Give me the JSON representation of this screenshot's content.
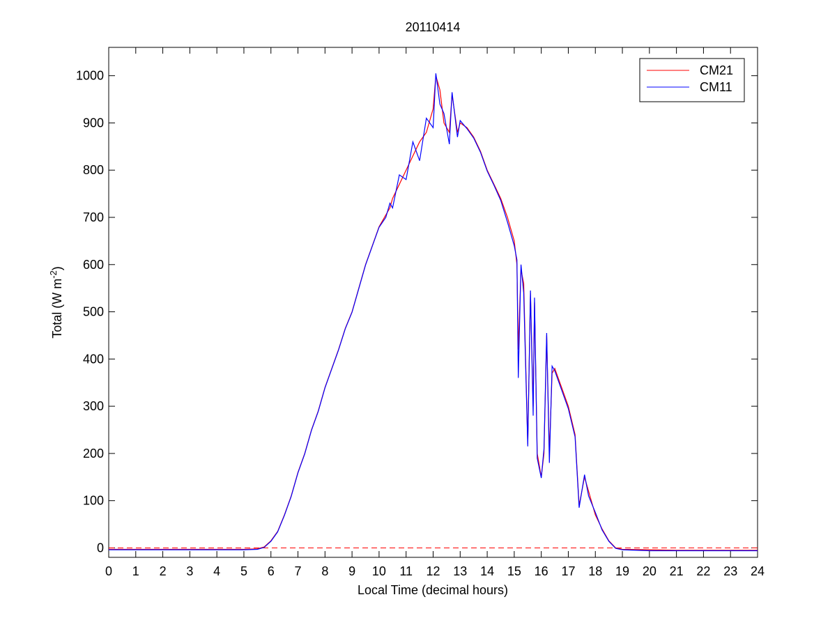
{
  "chart_data": {
    "type": "line",
    "title": "20110414",
    "xlabel": "Local Time (decimal hours)",
    "ylabel": [
      "Total (W m",
      "-2",
      ")"
    ],
    "x": [
      0,
      1,
      2,
      3,
      4,
      5,
      5.5,
      5.75,
      6,
      6.25,
      6.5,
      6.75,
      7,
      7.25,
      7.5,
      7.75,
      8,
      8.25,
      8.5,
      8.75,
      9,
      9.25,
      9.5,
      9.75,
      10,
      10.25,
      10.4,
      10.5,
      10.75,
      11,
      11.25,
      11.5,
      11.75,
      12,
      12.1,
      12.25,
      12.4,
      12.6,
      12.7,
      12.9,
      13,
      13.25,
      13.5,
      13.75,
      14,
      14.25,
      14.5,
      14.75,
      15,
      15.1,
      15.15,
      15.25,
      15.35,
      15.5,
      15.6,
      15.7,
      15.75,
      15.85,
      16,
      16.1,
      16.2,
      16.3,
      16.4,
      16.5,
      16.75,
      17,
      17.25,
      17.4,
      17.6,
      17.75,
      18,
      18.25,
      18.5,
      18.75,
      19,
      20,
      21,
      22,
      23,
      24
    ],
    "series": [
      {
        "name": "CM21",
        "color": "#ff0000",
        "values": [
          -3,
          -3,
          -3,
          -3,
          -3,
          -3,
          -2,
          2,
          15,
          35,
          70,
          110,
          160,
          200,
          250,
          290,
          340,
          380,
          420,
          465,
          500,
          550,
          600,
          640,
          680,
          705,
          720,
          740,
          770,
          800,
          830,
          860,
          880,
          930,
          1000,
          970,
          900,
          880,
          960,
          880,
          900,
          890,
          870,
          840,
          800,
          770,
          740,
          700,
          650,
          600,
          420,
          590,
          560,
          220,
          540,
          300,
          520,
          200,
          150,
          200,
          450,
          200,
          370,
          380,
          340,
          300,
          240,
          90,
          150,
          120,
          70,
          40,
          15,
          0,
          -3,
          -4,
          -5,
          -5,
          -5,
          -5
        ]
      },
      {
        "name": "CM11",
        "color": "#0000ff",
        "values": [
          -4,
          -4,
          -4,
          -4,
          -4,
          -4,
          -3,
          1,
          14,
          34,
          69,
          109,
          159,
          199,
          249,
          289,
          339,
          379,
          419,
          464,
          499,
          549,
          599,
          639,
          679,
          700,
          730,
          720,
          790,
          780,
          860,
          820,
          910,
          890,
          1005,
          940,
          920,
          855,
          965,
          870,
          905,
          888,
          868,
          838,
          798,
          768,
          736,
          690,
          640,
          610,
          360,
          600,
          540,
          215,
          545,
          280,
          530,
          190,
          148,
          210,
          455,
          180,
          385,
          375,
          335,
          295,
          235,
          85,
          155,
          110,
          75,
          38,
          14,
          -1,
          -4,
          -6,
          -6,
          -6,
          -6,
          -6
        ]
      }
    ],
    "xlim": [
      0,
      24
    ],
    "ylim": [
      -20,
      1060
    ],
    "xticks": [
      0,
      1,
      2,
      3,
      4,
      5,
      6,
      7,
      8,
      9,
      10,
      11,
      12,
      13,
      14,
      15,
      16,
      17,
      18,
      19,
      20,
      21,
      22,
      23,
      24
    ],
    "yticks": [
      0,
      100,
      200,
      300,
      400,
      500,
      600,
      700,
      800,
      900,
      1000
    ],
    "reference_line": {
      "y": 0,
      "color": "#ff0000",
      "dashed": true
    },
    "legend": "northeast"
  }
}
